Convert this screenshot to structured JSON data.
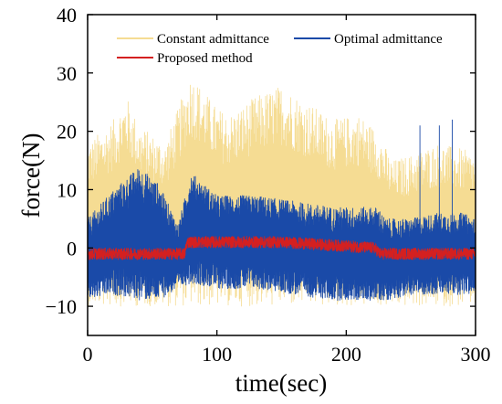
{
  "chart_data": {
    "type": "line",
    "title": "",
    "xlabel": "time(sec)",
    "ylabel": "force(N)",
    "xlim": [
      0,
      300
    ],
    "ylim": [
      -15,
      40
    ],
    "xticks": [
      0,
      100,
      200,
      300
    ],
    "yticks": [
      -10,
      0,
      10,
      20,
      30,
      40
    ],
    "xtick_labels": [
      "0",
      "100",
      "200",
      "300"
    ],
    "ytick_labels": [
      "−10",
      "0",
      "10",
      "20",
      "30",
      "40"
    ],
    "grid": false,
    "legend_position": "top, inside plot",
    "series": [
      {
        "name": "Constant admittance",
        "color": "#f5dc93",
        "style": "dense oscillation",
        "envelope": {
          "t": [
            0,
            20,
            30,
            40,
            60,
            80,
            100,
            110,
            130,
            150,
            170,
            190,
            210,
            225,
            235,
            250,
            270,
            290,
            300
          ],
          "max": [
            18,
            22,
            26,
            21,
            18,
            30,
            24,
            23,
            26,
            28,
            25,
            22,
            23,
            20,
            15,
            16,
            18,
            17,
            16
          ],
          "min": [
            -10,
            -10,
            -10,
            -10,
            -10,
            -10,
            -10,
            -10,
            -10,
            -10,
            -10,
            -10,
            -10,
            -10,
            -10,
            -10,
            -10,
            -10,
            -10
          ]
        }
      },
      {
        "name": "Optimal admittance",
        "color": "#1a4aa8",
        "style": "dense oscillation",
        "envelope": {
          "t": [
            0,
            20,
            40,
            55,
            70,
            80,
            100,
            130,
            160,
            190,
            210,
            225,
            230,
            250,
            270,
            290,
            300
          ],
          "max": [
            5,
            10,
            14,
            11,
            4,
            13,
            9,
            9,
            8,
            7,
            7,
            7,
            5,
            5,
            6,
            6,
            5
          ],
          "min": [
            -9,
            -8,
            -9,
            -9,
            -7,
            -6,
            -7,
            -7,
            -8,
            -9,
            -9,
            -9,
            -9,
            -8,
            -8,
            -8,
            -8
          ]
        },
        "spikes": [
          {
            "t": 257,
            "y": 21
          },
          {
            "t": 272,
            "y": 21
          },
          {
            "t": 282,
            "y": 22
          }
        ]
      },
      {
        "name": "Proposed method",
        "color": "#d42020",
        "style": "dense oscillation",
        "baseline": {
          "t": [
            0,
            75,
            77,
            150,
            222,
            226,
            300
          ],
          "y": [
            -1,
            -1,
            1,
            1,
            0,
            -1,
            -1
          ]
        },
        "amplitude": 1
      }
    ]
  }
}
